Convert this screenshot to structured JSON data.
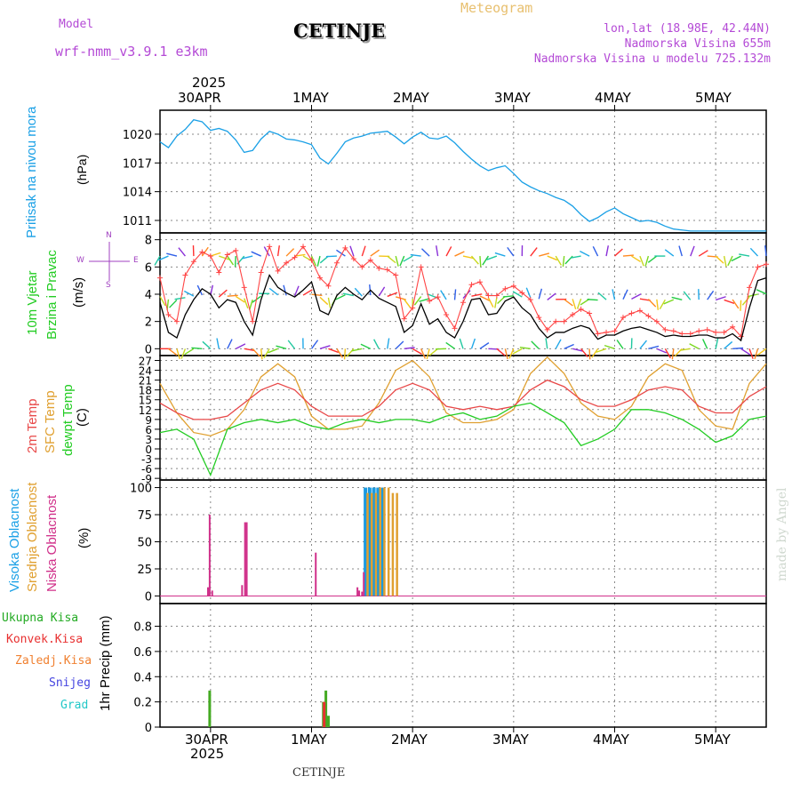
{
  "header": {
    "model_label": "Model",
    "model_name": "wrf-nmm_v3.9.1  e3km",
    "station": "CETINJE",
    "product": "Meteogram",
    "coords": "lon,lat (18.98E, 42.44N)",
    "elevation": "Nadmorska Visina 655m",
    "model_elevation": "Nadmorska Visina u modelu 725.132m"
  },
  "footer": {
    "station": "CETINJE",
    "credit": "made by Angel"
  },
  "time_axis": {
    "year": "2025",
    "day_labels": [
      "30APR",
      "1MAY",
      "2MAY",
      "3MAY",
      "4MAY",
      "5MAY"
    ],
    "start_hours": 0,
    "end_hours": 144,
    "day_ticks_hours": [
      12,
      36,
      60,
      84,
      108,
      132
    ]
  },
  "panels": {
    "pressure": {
      "title": "Pritisak na nivou mora",
      "unit": "(hPa)"
    },
    "wind": {
      "title_1": "10m Vjetar",
      "title_2": "Brzina i Pravac",
      "unit": "(m/s)",
      "compass": {
        "n": "N",
        "s": "S",
        "e": "E",
        "w": "W"
      }
    },
    "temp": {
      "title_1": "2m Temp",
      "title_2": "SFC Temp",
      "title_3": "dewpt Temp",
      "unit": "(C)"
    },
    "cloud": {
      "title_1": "Visoka Oblacnost",
      "title_2": "Srednja Oblacnost",
      "title_3": "Niska Oblacnost",
      "unit": "(%)"
    },
    "precip": {
      "unit": "1hr Precip (mm)",
      "legend": [
        "Ukupna Kisa",
        "Konvek.Kisa",
        "Zaledj.Kisa",
        "Snijeg",
        "Grad"
      ]
    }
  },
  "colors": {
    "pressure": "#1aa0e6",
    "wind_speed": "#000000",
    "gust": "#ff4444",
    "temp2m": "#e84848",
    "sfc": "#e0a030",
    "dewpt": "#22cc22",
    "high_cloud": "#1a9ae0",
    "mid_cloud": "#e0a030",
    "low_cloud": "#d0308a",
    "precip_total": "#44aa22",
    "precip_conv": "#e83030",
    "precip_frz": "#f08030",
    "snow": "#4444e0",
    "hail": "#22c8c8",
    "title": "#d966c8"
  },
  "chart_data": [
    {
      "type": "line",
      "title": "Pritisak na nivou mora",
      "ylabel": "(hPa)",
      "xunit": "hours from 29APR 12UTC",
      "yticks": [
        1011,
        1014,
        1017,
        1020
      ],
      "ylim": [
        1009.7,
        1022.5
      ],
      "series": [
        {
          "name": "MSLP",
          "x": [
            0,
            2,
            4,
            6,
            8,
            10,
            12,
            14,
            16,
            18,
            20,
            22,
            24,
            26,
            28,
            30,
            32,
            34,
            36,
            38,
            40,
            42,
            44,
            46,
            48,
            50,
            52,
            54,
            56,
            58,
            60,
            62,
            64,
            66,
            68,
            70,
            72,
            74,
            76,
            78,
            80,
            82,
            84,
            86,
            88,
            90,
            92,
            94,
            96,
            98,
            100,
            102,
            104,
            106,
            108,
            110,
            112,
            114,
            116,
            118,
            120,
            122,
            124,
            126,
            128,
            130,
            132,
            134,
            136,
            138,
            140,
            142,
            144
          ],
          "y": [
            1019.2,
            1018.6,
            1019.8,
            1020.5,
            1021.5,
            1021.3,
            1020.4,
            1020.6,
            1020.3,
            1019.4,
            1018.1,
            1018.3,
            1019.5,
            1020.3,
            1020.0,
            1019.5,
            1019.4,
            1019.2,
            1018.9,
            1017.5,
            1016.9,
            1018.0,
            1019.2,
            1019.6,
            1019.8,
            1020.1,
            1020.2,
            1020.3,
            1019.7,
            1019.0,
            1019.7,
            1020.2,
            1019.6,
            1019.5,
            1019.8,
            1019.1,
            1018.2,
            1017.4,
            1016.7,
            1016.2,
            1016.5,
            1016.7,
            1015.9,
            1015.0,
            1014.5,
            1014.1,
            1013.8,
            1013.4,
            1013.1,
            1012.5,
            1011.6,
            1010.9,
            1011.3,
            1011.9,
            1012.3,
            1011.7,
            1011.3,
            1010.9,
            1011.0,
            1010.8,
            1010.4,
            1010.1,
            1010.0,
            1009.9,
            1009.9,
            1009.9,
            1009.9,
            1009.9,
            1009.9,
            1009.9,
            1009.9,
            1009.9,
            1009.9
          ]
        }
      ]
    },
    {
      "type": "line",
      "title": "10m Vjetar - Brzina i Pravac",
      "ylabel": "(m/s)",
      "yticks": [
        0,
        2,
        4,
        6,
        8
      ],
      "ylim": [
        -0.5,
        8.5
      ],
      "series": [
        {
          "name": "speed",
          "x": [
            0,
            2,
            4,
            6,
            8,
            10,
            12,
            14,
            16,
            18,
            20,
            22,
            24,
            26,
            28,
            30,
            32,
            34,
            36,
            38,
            40,
            42,
            44,
            46,
            48,
            50,
            52,
            54,
            56,
            58,
            60,
            62,
            64,
            66,
            68,
            70,
            72,
            74,
            76,
            78,
            80,
            82,
            84,
            86,
            88,
            90,
            92,
            94,
            96,
            98,
            100,
            102,
            104,
            106,
            108,
            110,
            112,
            114,
            116,
            118,
            120,
            122,
            124,
            126,
            128,
            130,
            132,
            134,
            136,
            138,
            140,
            142,
            144
          ],
          "y": [
            3.4,
            1.2,
            0.8,
            2.5,
            3.6,
            4.4,
            4.0,
            3.0,
            3.6,
            3.4,
            2.0,
            1.0,
            3.6,
            5.4,
            4.5,
            4.1,
            3.8,
            4.3,
            4.9,
            2.8,
            2.5,
            3.9,
            4.5,
            4.0,
            3.6,
            4.3,
            3.7,
            3.4,
            3.1,
            1.2,
            1.7,
            3.3,
            1.8,
            2.2,
            1.2,
            0.8,
            2.0,
            3.6,
            3.7,
            2.5,
            2.6,
            3.5,
            3.8,
            3.0,
            2.5,
            1.5,
            0.8,
            1.2,
            1.2,
            1.5,
            1.7,
            1.5,
            0.7,
            1.0,
            1.0,
            1.3,
            1.5,
            1.6,
            1.4,
            1.2,
            0.9,
            1.0,
            0.9,
            0.9,
            1.0,
            1.0,
            0.8,
            0.8,
            1.1,
            0.6,
            3.0,
            5.0,
            5.2
          ]
        },
        {
          "name": "gust",
          "x": [
            0,
            2,
            4,
            6,
            8,
            10,
            12,
            14,
            16,
            18,
            20,
            22,
            24,
            26,
            28,
            30,
            32,
            34,
            36,
            38,
            40,
            42,
            44,
            46,
            48,
            50,
            52,
            54,
            56,
            58,
            60,
            62,
            64,
            66,
            68,
            70,
            72,
            74,
            76,
            78,
            80,
            82,
            84,
            86,
            88,
            90,
            92,
            94,
            96,
            98,
            100,
            102,
            104,
            106,
            108,
            110,
            112,
            114,
            116,
            118,
            120,
            122,
            124,
            126,
            128,
            130,
            132,
            134,
            136,
            138,
            140,
            142,
            144
          ],
          "y": [
            5.2,
            2.5,
            2.0,
            5.4,
            6.4,
            7.1,
            6.8,
            5.6,
            6.9,
            7.2,
            4.5,
            2.0,
            5.6,
            7.5,
            5.7,
            6.3,
            6.7,
            7.5,
            6.5,
            5.2,
            4.6,
            6.3,
            7.4,
            6.6,
            6.0,
            6.5,
            5.9,
            5.8,
            5.4,
            2.2,
            3.0,
            6.0,
            3.5,
            3.8,
            2.5,
            1.5,
            3.4,
            4.7,
            4.9,
            3.9,
            3.9,
            4.4,
            4.6,
            4.1,
            3.6,
            2.3,
            1.4,
            2.0,
            2.0,
            2.5,
            2.9,
            2.6,
            1.1,
            1.2,
            1.3,
            2.3,
            2.6,
            2.8,
            2.4,
            2.0,
            1.4,
            1.3,
            1.1,
            1.1,
            1.3,
            1.4,
            1.2,
            1.2,
            1.6,
            0.9,
            4.5,
            6.0,
            6.2
          ]
        }
      ]
    },
    {
      "type": "line",
      "title": "2m Temp / SFC Temp / dewpt Temp",
      "ylabel": "(C)",
      "yticks": [
        -9,
        -6,
        -3,
        0,
        3,
        6,
        9,
        12,
        15,
        18,
        21,
        24,
        27
      ],
      "ylim": [
        -9.5,
        28.5
      ],
      "series": [
        {
          "name": "2m Temp",
          "x": [
            0,
            4,
            8,
            12,
            16,
            20,
            24,
            28,
            32,
            36,
            40,
            44,
            48,
            52,
            56,
            60,
            64,
            68,
            72,
            76,
            80,
            84,
            88,
            92,
            96,
            100,
            104,
            108,
            112,
            116,
            120,
            124,
            128,
            132,
            136,
            140,
            144
          ],
          "y": [
            14,
            11,
            9,
            9,
            10,
            14,
            18,
            20,
            18,
            13,
            10,
            10,
            10,
            13,
            18,
            20,
            18,
            13,
            12,
            13,
            12,
            13,
            18,
            21,
            19,
            15,
            13,
            13,
            15,
            18,
            19,
            18,
            13,
            11,
            11,
            16,
            19
          ]
        },
        {
          "name": "SFC Temp",
          "x": [
            0,
            4,
            8,
            12,
            16,
            20,
            24,
            28,
            32,
            36,
            40,
            44,
            48,
            52,
            56,
            60,
            64,
            68,
            72,
            76,
            80,
            84,
            88,
            92,
            96,
            100,
            104,
            108,
            112,
            116,
            120,
            124,
            128,
            132,
            136,
            140,
            144
          ],
          "y": [
            20,
            11,
            5,
            4,
            6,
            12,
            22,
            26,
            22,
            10,
            6,
            6,
            7,
            14,
            24,
            27,
            22,
            11,
            8,
            8,
            9,
            12,
            23,
            28,
            23,
            14,
            10,
            9,
            13,
            22,
            26,
            24,
            12,
            7,
            6,
            20,
            26
          ]
        },
        {
          "name": "dewpt Temp",
          "x": [
            0,
            4,
            8,
            12,
            16,
            20,
            24,
            28,
            32,
            36,
            40,
            44,
            48,
            52,
            56,
            60,
            64,
            68,
            72,
            76,
            80,
            84,
            88,
            92,
            96,
            100,
            104,
            108,
            112,
            116,
            120,
            124,
            128,
            132,
            136,
            140,
            144
          ],
          "y": [
            5,
            6,
            3,
            -8,
            6,
            8,
            9,
            8,
            9,
            7,
            6,
            8,
            9,
            8,
            9,
            9,
            8,
            10,
            11,
            9,
            10,
            13,
            14,
            11,
            8,
            1,
            3,
            6,
            12,
            12,
            11,
            9,
            6,
            2,
            4,
            9,
            10
          ]
        }
      ]
    },
    {
      "type": "bar",
      "title": "Visoka / Srednja / Niska Oblacnost",
      "ylabel": "(%)",
      "yticks": [
        0,
        25,
        50,
        75,
        100
      ],
      "ylim": [
        -7,
        107
      ],
      "series": [
        {
          "name": "high",
          "x": [
            48.8,
            49.8,
            50.8,
            51.8,
            52.8
          ],
          "values": [
            100,
            100,
            100,
            100,
            100
          ]
        },
        {
          "name": "mid",
          "x": [
            49.3,
            50.3,
            51.3,
            52.3,
            53.3,
            54.3,
            55.3,
            56.3
          ],
          "values": [
            95,
            95,
            95,
            100,
            100,
            100,
            95,
            95
          ]
        },
        {
          "name": "low",
          "x": [
            11.4,
            11.8,
            12.4,
            19.5,
            20.2,
            20.6,
            37.0,
            46.9,
            47.3,
            48.0,
            48.4
          ],
          "values": [
            8,
            75,
            5,
            10,
            68,
            68,
            40,
            8,
            5,
            4,
            22
          ]
        }
      ]
    },
    {
      "type": "bar",
      "title": "1hr Precip",
      "ylabel": "1hr Precip (mm)",
      "yticks": [
        0,
        0.2,
        0.4,
        0.6,
        0.8
      ],
      "ylim": [
        0,
        0.98
      ],
      "series": [
        {
          "name": "Ukupna Kisa",
          "x": [
            11.8,
            38.8,
            39.4,
            40.0
          ],
          "values": [
            0.29,
            0.2,
            0.29,
            0.09
          ]
        },
        {
          "name": "Konvek.Kisa",
          "x": [
            39.0
          ],
          "values": [
            0.2
          ]
        }
      ]
    }
  ]
}
